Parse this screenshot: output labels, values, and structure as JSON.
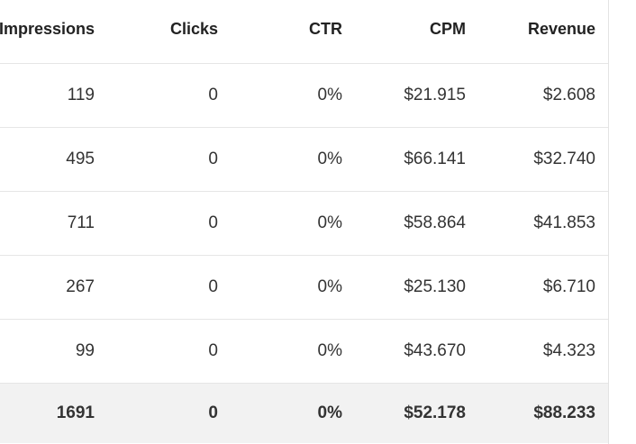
{
  "columns": {
    "impressions": "Impressions",
    "clicks": "Clicks",
    "ctr": "CTR",
    "cpm": "CPM",
    "revenue": "Revenue"
  },
  "rows": [
    {
      "impressions": "119",
      "clicks": "0",
      "ctr": "0%",
      "cpm": "$21.915",
      "revenue": "$2.608"
    },
    {
      "impressions": "495",
      "clicks": "0",
      "ctr": "0%",
      "cpm": "$66.141",
      "revenue": "$32.740"
    },
    {
      "impressions": "711",
      "clicks": "0",
      "ctr": "0%",
      "cpm": "$58.864",
      "revenue": "$41.853"
    },
    {
      "impressions": "267",
      "clicks": "0",
      "ctr": "0%",
      "cpm": "$25.130",
      "revenue": "$6.710"
    },
    {
      "impressions": "99",
      "clicks": "0",
      "ctr": "0%",
      "cpm": "$43.670",
      "revenue": "$4.323"
    }
  ],
  "total": {
    "impressions": "1691",
    "clicks": "0",
    "ctr": "0%",
    "cpm": "$52.178",
    "revenue": "$88.233"
  }
}
